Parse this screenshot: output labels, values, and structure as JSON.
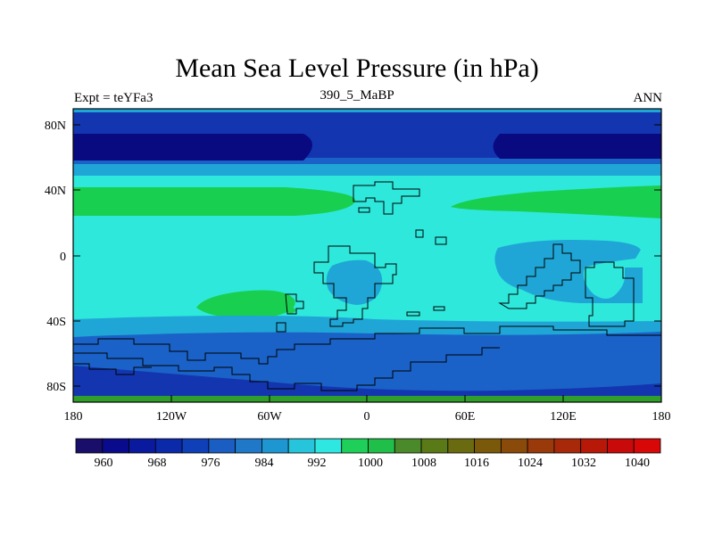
{
  "title": "Mean Sea Level Pressure (in hPa)",
  "subtitle_left": "Expt = teYFa3",
  "subtitle_center": "390_5_MaBP",
  "subtitle_right": "ANN",
  "x_ticks": [
    "180",
    "120W",
    "60W",
    "0",
    "60E",
    "120E",
    "180"
  ],
  "y_ticks": [
    "80N",
    "40N",
    "0",
    "40S",
    "80S"
  ],
  "colorbar": {
    "colors": [
      "#1a0e6b",
      "#0a0a8c",
      "#0a1a9e",
      "#0a2aaa",
      "#1040b8",
      "#1a5ec4",
      "#1f78c8",
      "#1e96d2",
      "#27c5dc",
      "#2ee7e0",
      "#1ecf5a",
      "#1fbf4a",
      "#4a8a2a",
      "#5a7a18",
      "#6a6a10",
      "#7a5a0a",
      "#8a4a0a",
      "#9a3a0a",
      "#a8280a",
      "#b81808",
      "#c80a0a",
      "#d80808"
    ],
    "labels": [
      "960",
      "968",
      "976",
      "984",
      "992",
      "1000",
      "1008",
      "1016",
      "1024",
      "1032",
      "1040"
    ]
  },
  "map_colors": {
    "c956": "#0a0a80",
    "c964": "#0d1a9a",
    "c976": "#1336b0",
    "c984": "#1a62c8",
    "c992": "#1fa6d6",
    "c1000": "#2ee8dc",
    "c1008": "#19cf50",
    "c1016": "#2f9e2a"
  }
}
